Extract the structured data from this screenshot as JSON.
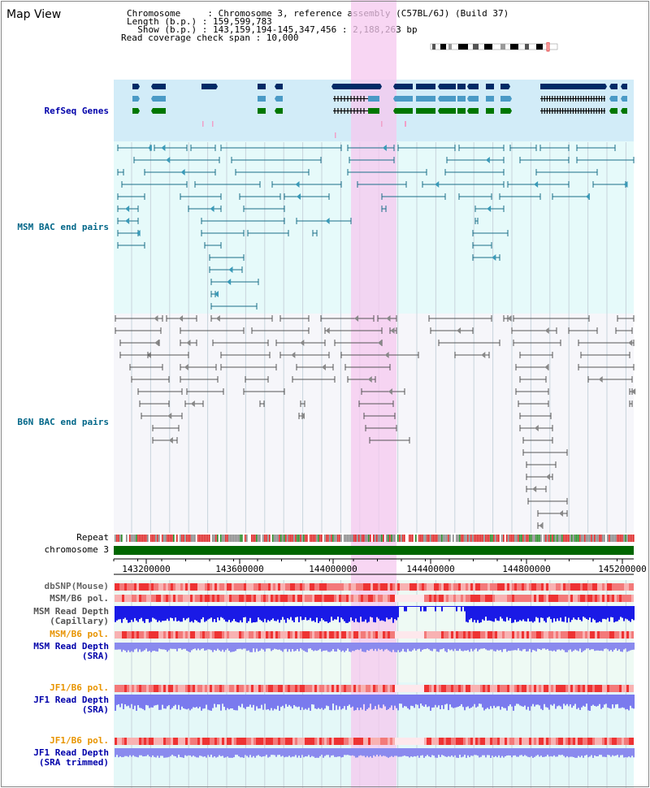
{
  "view_title": "Map View",
  "info_lines": [
    "Chromosome     : Chromosome 3, reference assembly (C57BL/6J) (Build 37)",
    "Length (b.p.) : 159,599,783",
    "  Show (b.p.) : 143,159,194-145,347,456 : 2,188,263 bp",
    "Read coverage check span : 10,000"
  ],
  "tracks": {
    "refseq": "RefSeq Genes",
    "msm_bac": "MSM BAC end pairs",
    "b6n_bac": "B6N BAC end pairs",
    "repeat": "Repeat",
    "chromosome": "chromosome 3",
    "dbsnp": "dbSNP(Mouse)",
    "msm_pol1": "MSM/B6 pol.",
    "msm_depth_cap": "MSM Read Depth\n(Capillary)",
    "msm_pol2": "MSM/B6 pol.",
    "msm_depth_sra": "MSM Read Depth\n(SRA)",
    "jf1_pol1": "JF1/B6 pol.",
    "jf1_depth_sra": "JF1 Read Depth\n(SRA)",
    "jf1_pol2": "JF1/B6 pol.",
    "jf1_depth_trim": "JF1 Read Depth\n(SRA trimmed)"
  },
  "axis": {
    "ticks": [
      "143200000",
      "143600000",
      "144000000",
      "144400000",
      "144800000",
      "145200000"
    ]
  },
  "colors": {
    "refseq_bg": "#d2ecf8",
    "msm_bg": "#e6fafa",
    "b6n_bg": "#f6f6fa",
    "highlight": "#f5c8ef",
    "label_blue": "#0000aa",
    "label_teal": "#006688",
    "label_orange": "#e89400",
    "gene_navy": "#002a66",
    "gene_teal": "#4a9ac6",
    "gene_green": "#007700",
    "chrom_green": "#006600"
  }
}
